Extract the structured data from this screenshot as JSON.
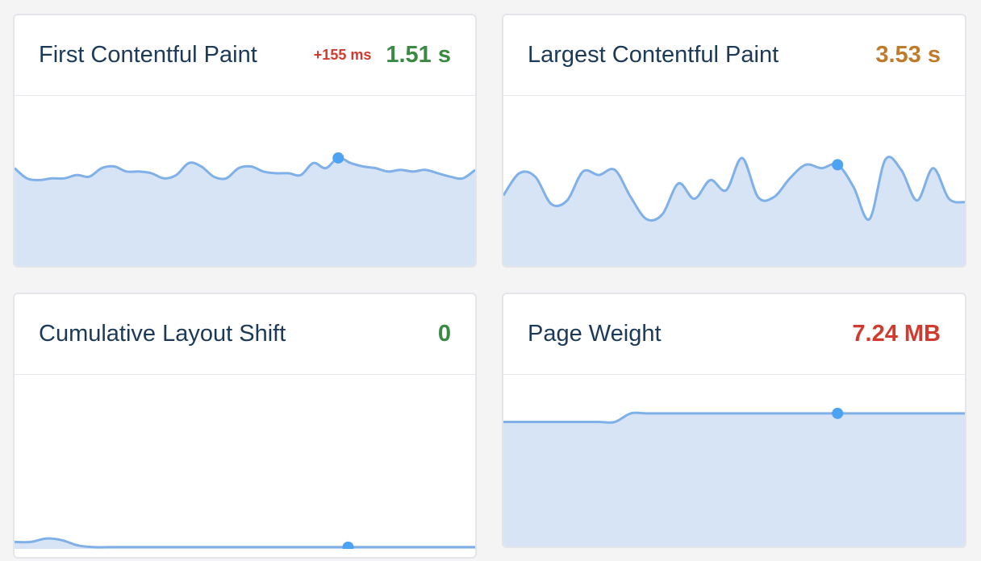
{
  "colors": {
    "line": "#7fb0e8",
    "fill": "#d6e4f6",
    "dot": "#4da3f2",
    "good": "#3a8a43",
    "warn": "#c17a2a",
    "bad": "#d13b2f"
  },
  "cards": [
    {
      "title": "First Contentful Paint",
      "delta": "+155 ms",
      "delta_color": "#d13b2f",
      "value": "1.51 s",
      "value_color": "#3a8a43",
      "level": 0.57,
      "series": [
        0.58,
        0.52,
        0.51,
        0.52,
        0.52,
        0.54,
        0.53,
        0.58,
        0.59,
        0.56,
        0.56,
        0.55,
        0.52,
        0.54,
        0.61,
        0.59,
        0.53,
        0.52,
        0.58,
        0.59,
        0.56,
        0.55,
        0.55,
        0.54,
        0.61,
        0.58,
        0.64,
        0.61,
        0.59,
        0.58,
        0.56,
        0.57,
        0.56,
        0.57,
        0.55,
        0.53,
        0.52,
        0.57
      ],
      "highlight_index": 26
    },
    {
      "title": "Largest Contentful Paint",
      "delta": "",
      "delta_color": "#d13b2f",
      "value": "3.53 s",
      "value_color": "#c17a2a",
      "level": 0.6,
      "series": [
        0.42,
        0.55,
        0.53,
        0.37,
        0.39,
        0.56,
        0.54,
        0.57,
        0.41,
        0.28,
        0.31,
        0.49,
        0.4,
        0.51,
        0.45,
        0.64,
        0.41,
        0.41,
        0.52,
        0.6,
        0.58,
        0.6,
        0.47,
        0.28,
        0.63,
        0.57,
        0.39,
        0.58,
        0.4,
        0.38
      ],
      "highlight_index": 21
    },
    {
      "title": "Cumulative Layout Shift",
      "delta": "",
      "delta_color": "#d13b2f",
      "value": "0",
      "value_color": "#3a8a43",
      "level": 0.0,
      "series": [
        0.04,
        0.04,
        0.06,
        0.05,
        0.02,
        0.01,
        0.01,
        0.01,
        0.01,
        0.01,
        0.01,
        0.01,
        0.01,
        0.01,
        0.01,
        0.01,
        0.01,
        0.01,
        0.01,
        0.01,
        0.01,
        0.01,
        0.01,
        0.01,
        0.01,
        0.01,
        0.01,
        0.01,
        0.01,
        0.01
      ],
      "highlight_index": 21
    },
    {
      "title": "Page Weight",
      "delta": "",
      "delta_color": "#d13b2f",
      "value": "7.24 MB",
      "value_color": "#d13b2f",
      "level": 0.75,
      "series": [
        0.73,
        0.73,
        0.73,
        0.73,
        0.73,
        0.73,
        0.73,
        0.73,
        0.78,
        0.78,
        0.78,
        0.78,
        0.78,
        0.78,
        0.78,
        0.78,
        0.78,
        0.78,
        0.78,
        0.78,
        0.78,
        0.78,
        0.78,
        0.78,
        0.78,
        0.78,
        0.78,
        0.78,
        0.78,
        0.78
      ],
      "highlight_index": 21
    }
  ]
}
